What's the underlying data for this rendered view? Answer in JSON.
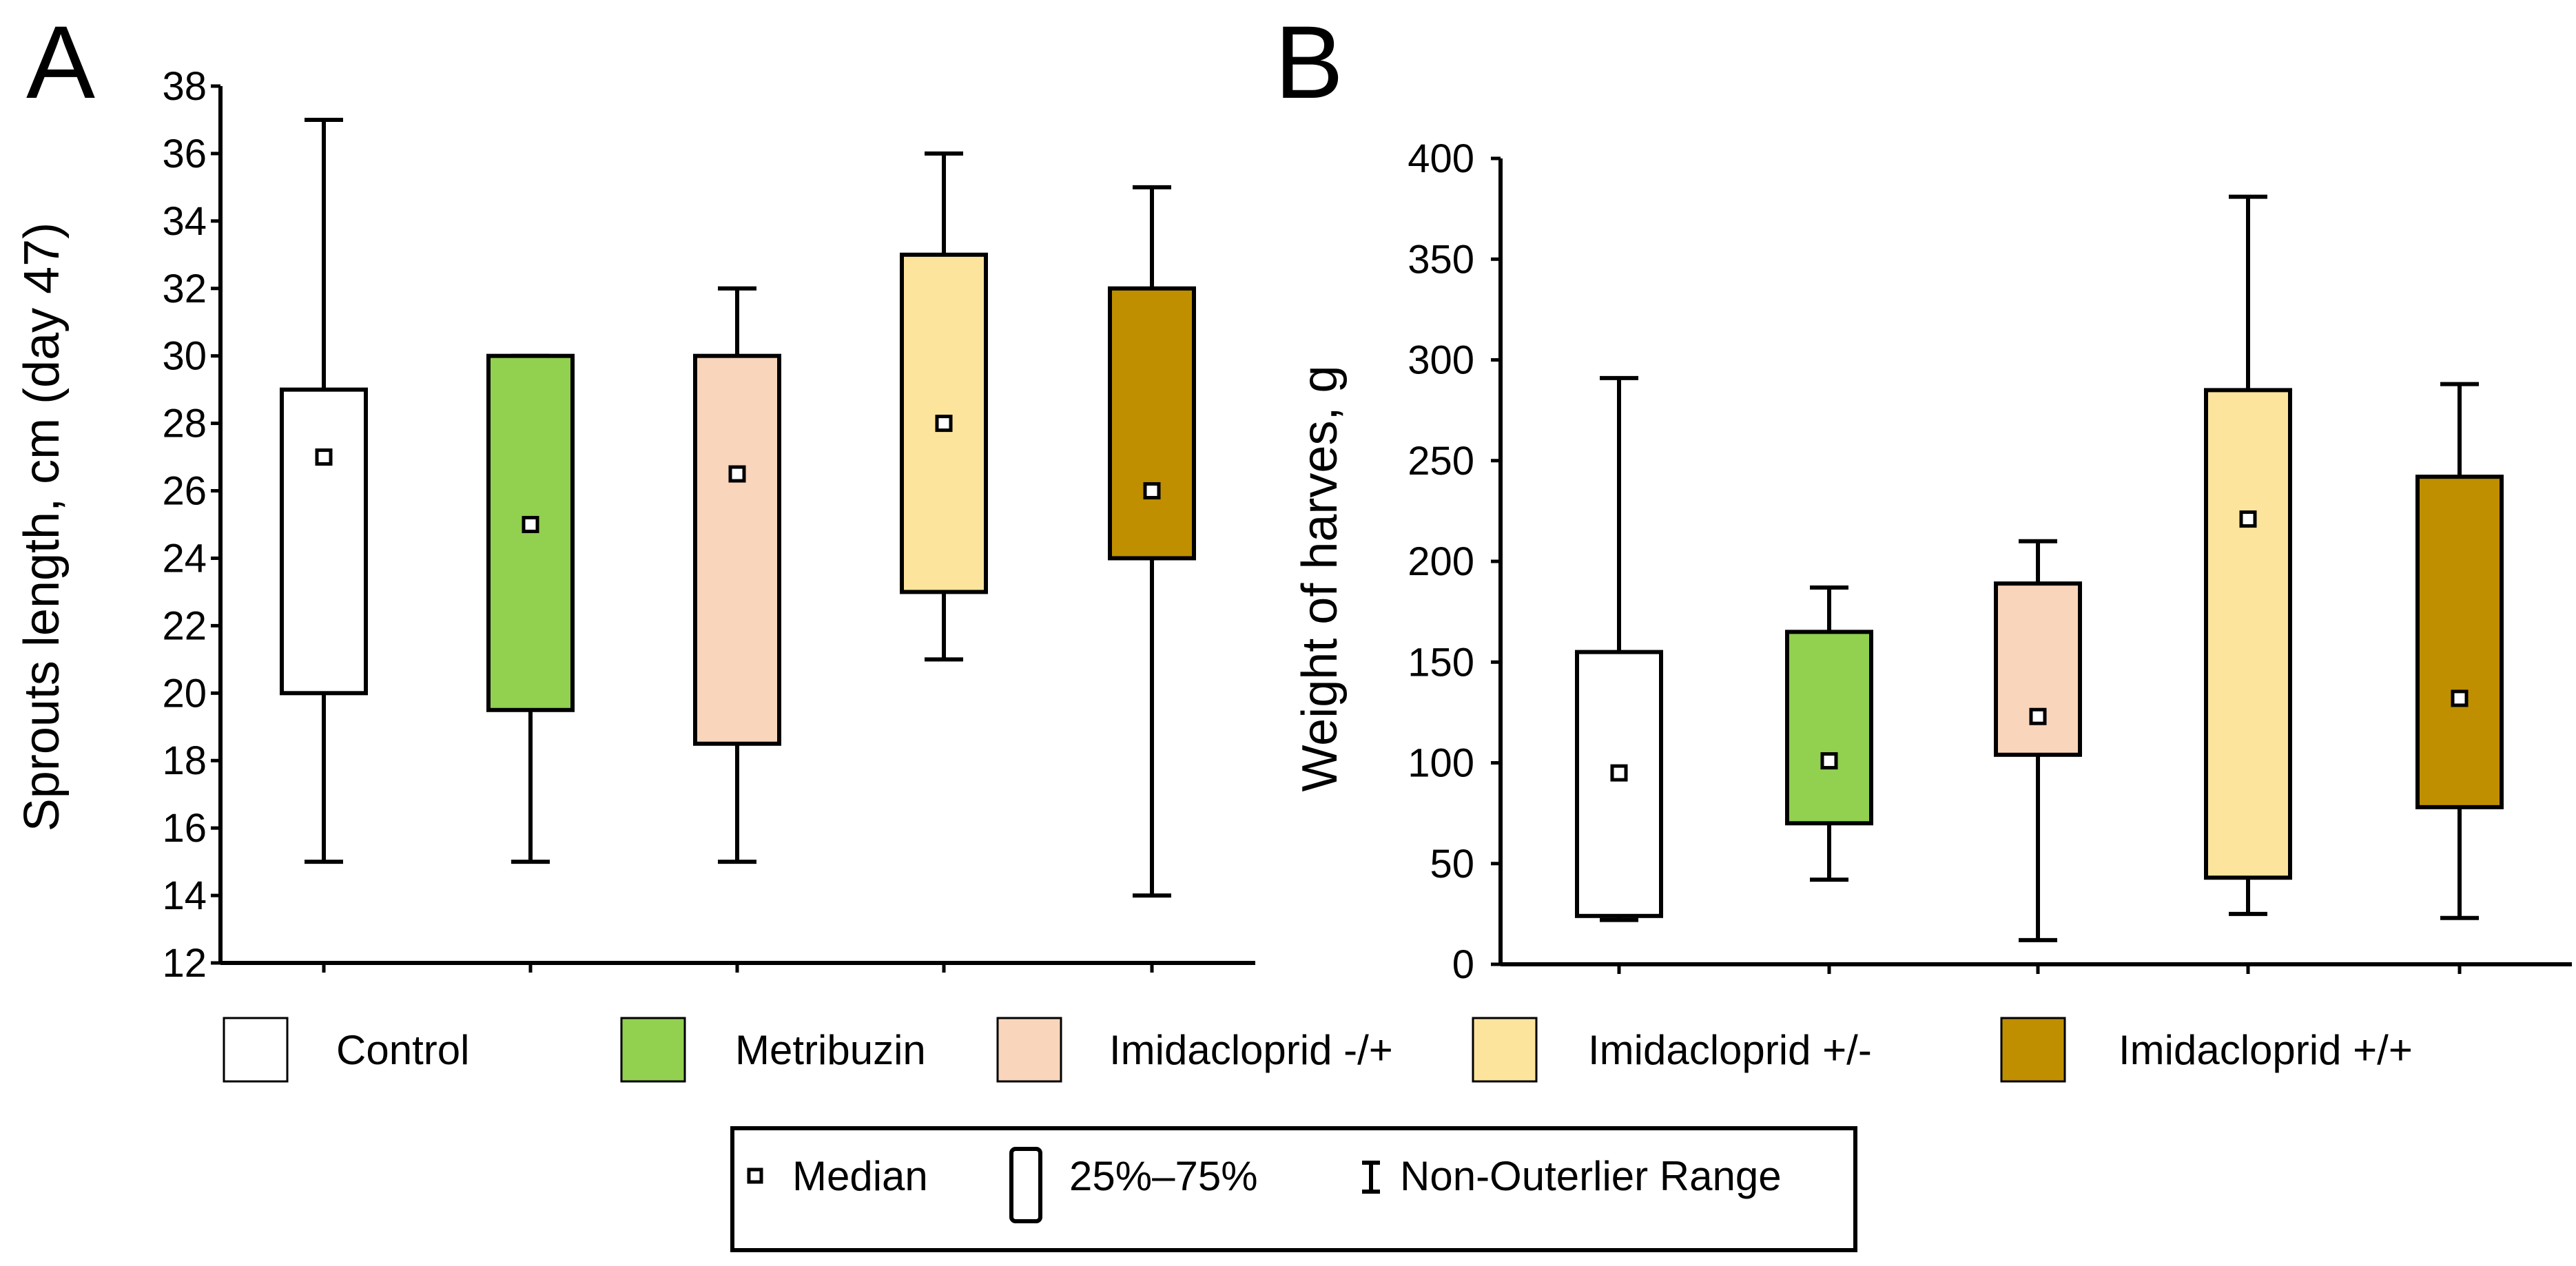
{
  "chart_data": [
    {
      "type": "box",
      "panel_label": "A",
      "ylabel": "Sprouts length, cm (day 47)",
      "xlabel": "",
      "ylim": [
        12,
        38
      ],
      "yticks": [
        12,
        14,
        16,
        18,
        20,
        22,
        24,
        26,
        28,
        30,
        32,
        34,
        36,
        38
      ],
      "categories": [
        "Control",
        "Metribuzin",
        "Imidacloprid -/+",
        "Imidacloprid +/-",
        "Imidacloprid +/+"
      ],
      "series": [
        {
          "name": "Control",
          "min": 15,
          "q1": 20,
          "median": 27,
          "q3": 29,
          "max": 37
        },
        {
          "name": "Metribuzin",
          "min": 15,
          "q1": 19.5,
          "median": 25,
          "q3": 30,
          "max": 30
        },
        {
          "name": "Imidacloprid -/+",
          "min": 15,
          "q1": 18.5,
          "median": 26.5,
          "q3": 30,
          "max": 32
        },
        {
          "name": "Imidacloprid +/-",
          "min": 21,
          "q1": 23,
          "median": 28,
          "q3": 33,
          "max": 36
        },
        {
          "name": "Imidacloprid +/+",
          "min": 14,
          "q1": 24,
          "median": 26,
          "q3": 32,
          "max": 35
        }
      ]
    },
    {
      "type": "box",
      "panel_label": "B",
      "ylabel": "Weight of harves, g",
      "xlabel": "",
      "ylim": [
        0,
        400
      ],
      "yticks": [
        0,
        50,
        100,
        150,
        200,
        250,
        300,
        350,
        400
      ],
      "categories": [
        "Control",
        "Metribuzin",
        "Imidacloprid -/+",
        "Imidacloprid +/-",
        "Imidacloprid +/+"
      ],
      "series": [
        {
          "name": "Control",
          "min": 22,
          "q1": 24,
          "median": 95,
          "q3": 155,
          "max": 291
        },
        {
          "name": "Metribuzin",
          "min": 42,
          "q1": 70,
          "median": 101,
          "q3": 165,
          "max": 187
        },
        {
          "name": "Imidacloprid -/+",
          "min": 12,
          "q1": 104,
          "median": 123,
          "q3": 189,
          "max": 210
        },
        {
          "name": "Imidacloprid +/-",
          "min": 25,
          "q1": 43,
          "median": 221,
          "q3": 285,
          "max": 381
        },
        {
          "name": "Imidacloprid +/+",
          "min": 23,
          "q1": 78,
          "median": 132,
          "q3": 242,
          "max": 288
        }
      ]
    }
  ],
  "colors": {
    "Control": "#ffffff",
    "Metribuzin": "#92d050",
    "Imidacloprid -/+": "#f8d5bb",
    "Imidacloprid +/-": "#fde49c",
    "Imidacloprid +/+": "#bf8f00"
  },
  "legend": {
    "groups": [
      "Control",
      "Metribuzin",
      "Imidacloprid -/+",
      "Imidacloprid +/-",
      "Imidacloprid +/+"
    ],
    "key": {
      "median_label": "Median",
      "box_label": "25%–75%",
      "whisker_label": "Non-Outerlier Range"
    }
  }
}
